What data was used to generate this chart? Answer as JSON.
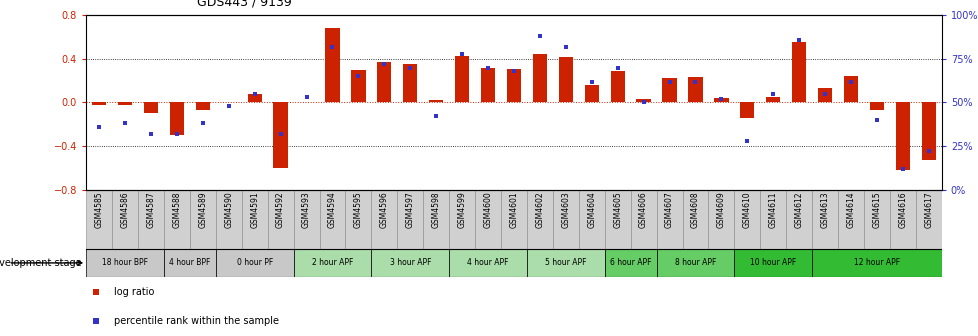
{
  "title": "GDS443 / 9139",
  "samples": [
    "GSM4585",
    "GSM4586",
    "GSM4587",
    "GSM4588",
    "GSM4589",
    "GSM4590",
    "GSM4591",
    "GSM4592",
    "GSM4593",
    "GSM4594",
    "GSM4595",
    "GSM4596",
    "GSM4597",
    "GSM4598",
    "GSM4599",
    "GSM4600",
    "GSM4601",
    "GSM4602",
    "GSM4603",
    "GSM4604",
    "GSM4605",
    "GSM4606",
    "GSM4607",
    "GSM4608",
    "GSM4609",
    "GSM4610",
    "GSM4611",
    "GSM4612",
    "GSM4613",
    "GSM4614",
    "GSM4615",
    "GSM4616",
    "GSM4617"
  ],
  "log_ratio": [
    -0.02,
    -0.02,
    -0.1,
    -0.3,
    -0.07,
    0.0,
    0.08,
    -0.6,
    0.0,
    0.68,
    0.3,
    0.37,
    0.35,
    0.02,
    0.43,
    0.32,
    0.31,
    0.44,
    0.42,
    0.16,
    0.29,
    0.03,
    0.22,
    0.23,
    0.04,
    -0.14,
    0.05,
    0.55,
    0.13,
    0.24,
    -0.07,
    -0.62,
    -0.53
  ],
  "percentile": [
    36,
    38,
    32,
    32,
    38,
    48,
    55,
    32,
    53,
    82,
    65,
    72,
    70,
    42,
    78,
    70,
    68,
    88,
    82,
    62,
    70,
    50,
    62,
    62,
    52,
    28,
    55,
    86,
    55,
    62,
    40,
    12,
    22
  ],
  "ylim_left": [
    -0.8,
    0.8
  ],
  "ylim_right": [
    0,
    100
  ],
  "yticks_left": [
    -0.8,
    -0.4,
    0.0,
    0.4,
    0.8
  ],
  "yticks_right": [
    0,
    25,
    50,
    75,
    100
  ],
  "bar_color": "#cc2200",
  "dot_color": "#3333cc",
  "stages": [
    {
      "label": "18 hour BPF",
      "start": 0,
      "end": 3,
      "color": "#c8c8c8"
    },
    {
      "label": "4 hour BPF",
      "start": 3,
      "end": 5,
      "color": "#c8c8c8"
    },
    {
      "label": "0 hour PF",
      "start": 5,
      "end": 8,
      "color": "#c8c8c8"
    },
    {
      "label": "2 hour APF",
      "start": 8,
      "end": 11,
      "color": "#aaddaa"
    },
    {
      "label": "3 hour APF",
      "start": 11,
      "end": 14,
      "color": "#aaddaa"
    },
    {
      "label": "4 hour APF",
      "start": 14,
      "end": 17,
      "color": "#aaddaa"
    },
    {
      "label": "5 hour APF",
      "start": 17,
      "end": 20,
      "color": "#aaddaa"
    },
    {
      "label": "6 hour APF",
      "start": 20,
      "end": 22,
      "color": "#66cc66"
    },
    {
      "label": "8 hour APF",
      "start": 22,
      "end": 25,
      "color": "#66cc66"
    },
    {
      "label": "10 hour APF",
      "start": 25,
      "end": 28,
      "color": "#33bb33"
    },
    {
      "label": "12 hour APF",
      "start": 28,
      "end": 33,
      "color": "#33bb33"
    }
  ],
  "legend_bar_label": "log ratio",
  "legend_dot_label": "percentile rank within the sample",
  "development_stage_label": "development stage"
}
